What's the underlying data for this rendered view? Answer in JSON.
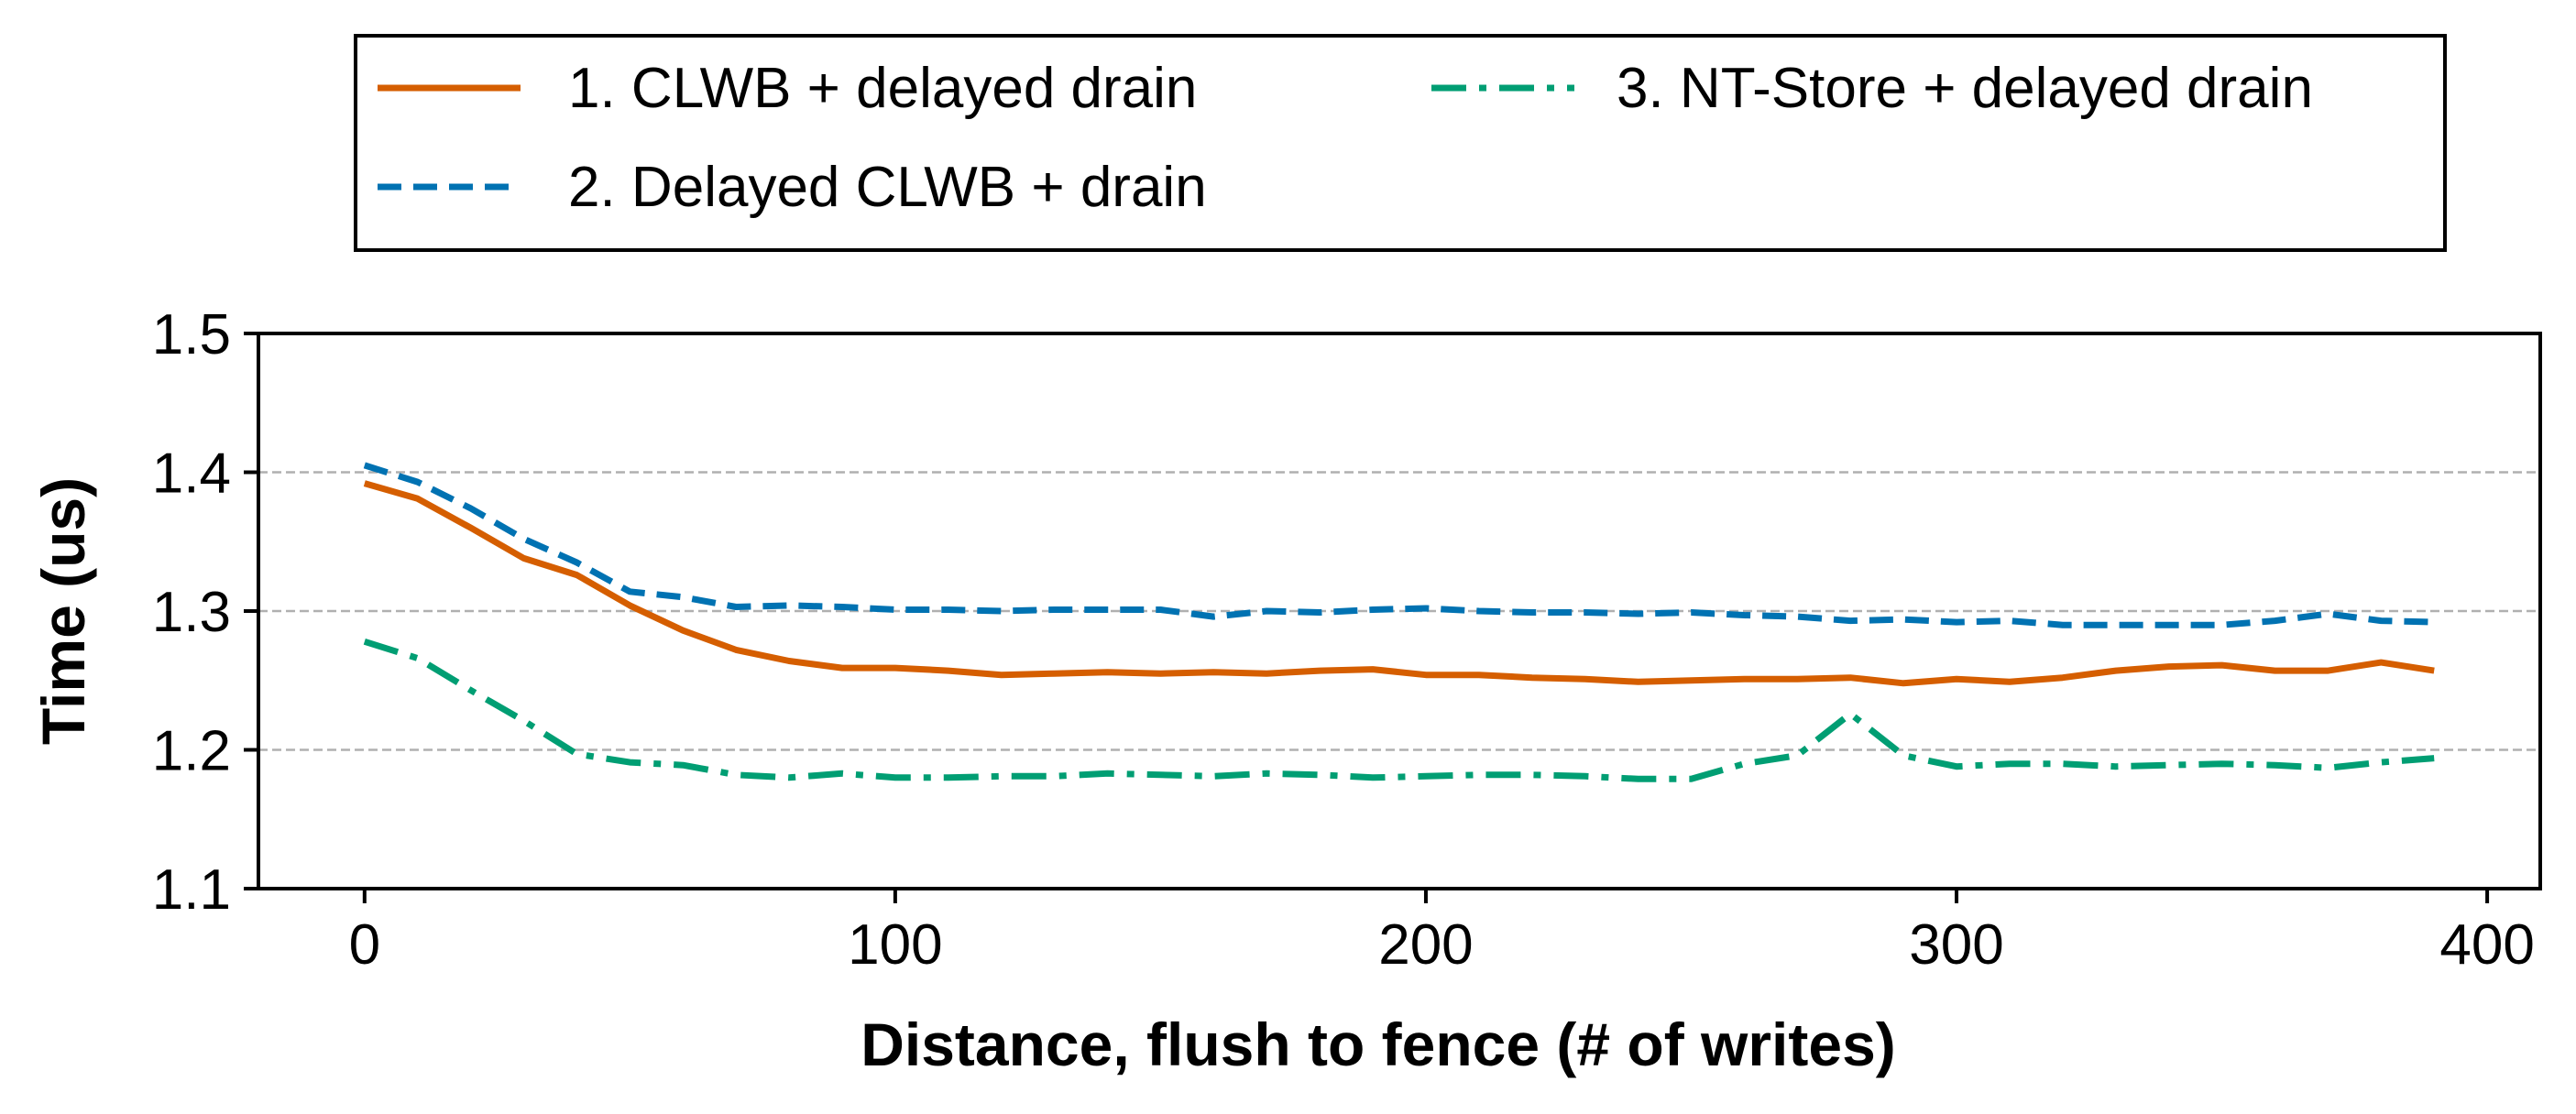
{
  "chart_data": {
    "type": "line",
    "title": "",
    "xlabel": "Distance, flush to fence (# of writes)",
    "ylabel": "Time (us)",
    "xlim": [
      -20,
      410
    ],
    "ylim": [
      1.1,
      1.5
    ],
    "xticks": [
      0,
      100,
      200,
      300,
      400
    ],
    "xtick_labels": [
      "0",
      "100",
      "200",
      "300",
      "400"
    ],
    "yticks": [
      1.1,
      1.2,
      1.3,
      1.4,
      1.5
    ],
    "ytick_labels": [
      "1.1",
      "1.2",
      "1.3",
      "1.4",
      "1.5"
    ],
    "grid": "y-major-dashed",
    "legend_position": "top, outside, two columns",
    "x": [
      0,
      10,
      20,
      30,
      40,
      50,
      60,
      70,
      80,
      90,
      100,
      110,
      120,
      130,
      140,
      150,
      160,
      170,
      180,
      190,
      200,
      210,
      220,
      230,
      240,
      250,
      260,
      270,
      280,
      290,
      300,
      310,
      320,
      330,
      340,
      350,
      360,
      370,
      380,
      390
    ],
    "series": [
      {
        "name": "1. CLWB + delayed drain",
        "color": "#D55E00",
        "dash": "solid",
        "values": [
          1.392,
          1.381,
          1.36,
          1.338,
          1.326,
          1.304,
          1.286,
          1.272,
          1.264,
          1.259,
          1.259,
          1.257,
          1.254,
          1.255,
          1.256,
          1.255,
          1.256,
          1.255,
          1.257,
          1.258,
          1.254,
          1.254,
          1.252,
          1.251,
          1.249,
          1.25,
          1.251,
          1.251,
          1.252,
          1.248,
          1.251,
          1.249,
          1.252,
          1.257,
          1.26,
          1.261,
          1.257,
          1.257,
          1.263,
          1.257
        ]
      },
      {
        "name": "2. Delayed CLWB + drain",
        "color": "#0072B2",
        "dash": "dashed",
        "values": [
          1.405,
          1.393,
          1.374,
          1.352,
          1.335,
          1.314,
          1.31,
          1.303,
          1.304,
          1.303,
          1.301,
          1.301,
          1.3,
          1.301,
          1.301,
          1.301,
          1.296,
          1.3,
          1.299,
          1.301,
          1.302,
          1.3,
          1.299,
          1.299,
          1.298,
          1.299,
          1.297,
          1.296,
          1.293,
          1.294,
          1.292,
          1.293,
          1.29,
          1.29,
          1.29,
          1.29,
          1.293,
          1.298,
          1.293,
          1.292
        ]
      },
      {
        "name": "3. NT-Store + delayed drain",
        "color": "#009E73",
        "dash": "dashdot",
        "values": [
          1.278,
          1.266,
          1.243,
          1.221,
          1.197,
          1.191,
          1.189,
          1.182,
          1.18,
          1.183,
          1.18,
          1.18,
          1.181,
          1.181,
          1.183,
          1.182,
          1.181,
          1.183,
          1.182,
          1.18,
          1.181,
          1.182,
          1.182,
          1.181,
          1.179,
          1.179,
          1.19,
          1.196,
          1.226,
          1.196,
          1.188,
          1.19,
          1.19,
          1.188,
          1.189,
          1.19,
          1.189,
          1.187,
          1.191,
          1.194
        ]
      }
    ]
  }
}
